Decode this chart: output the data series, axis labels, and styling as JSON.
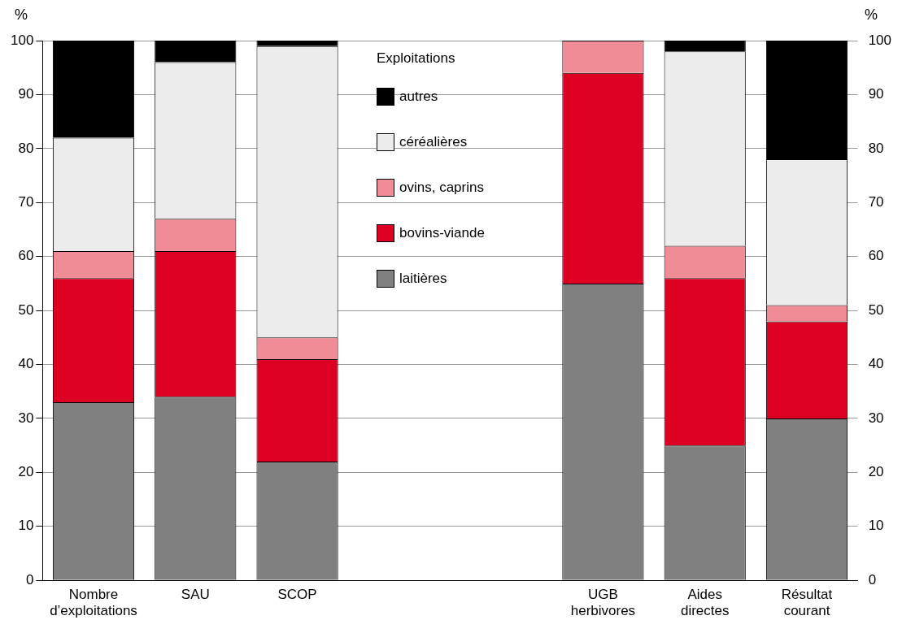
{
  "chart_data": {
    "type": "bar",
    "stacked": true,
    "ylabel": "%",
    "y2label": "%",
    "legend_title": "Exploitations",
    "legend": "top",
    "grid": "y",
    "categories": [
      "Nombre d’exploitations",
      "SAU",
      "SCOP",
      null,
      null,
      "UGB herbivores",
      "Aides directes",
      "Résultat courant"
    ],
    "ylim": [
      0,
      100
    ],
    "yticks": [
      0,
      10,
      20,
      30,
      40,
      50,
      60,
      70,
      80,
      90,
      100
    ],
    "y2lim": [
      0,
      100
    ],
    "y2ticks": [
      0,
      10,
      20,
      30,
      40,
      50,
      60,
      70,
      80,
      90,
      100
    ],
    "series": [
      {
        "name": "laitières",
        "color": "#808080",
        "values": [
          33,
          34,
          22,
          null,
          null,
          55,
          25,
          30
        ]
      },
      {
        "name": "bovins-viande",
        "color": "#dc0023",
        "values": [
          23,
          27,
          19,
          null,
          null,
          39,
          31,
          18
        ]
      },
      {
        "name": "ovins, caprins",
        "color": "#f08c96",
        "values": [
          5,
          6,
          4,
          null,
          null,
          6,
          6,
          3
        ]
      },
      {
        "name": "céréalières",
        "color": "#ececec",
        "values": [
          21,
          29,
          54,
          null,
          null,
          0,
          36,
          27
        ]
      },
      {
        "name": "autres",
        "color": "#000000",
        "values": [
          18,
          4,
          1,
          null,
          null,
          0,
          2,
          22
        ]
      }
    ]
  }
}
